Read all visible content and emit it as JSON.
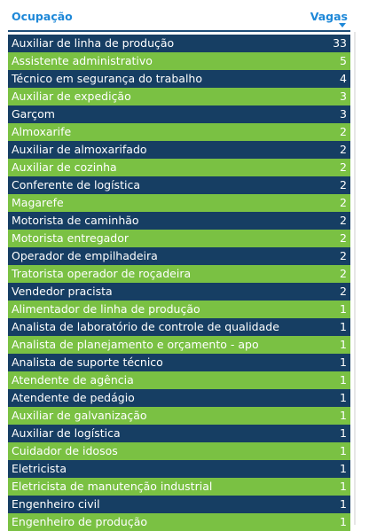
{
  "header": {
    "occupation_label": "Ocupação",
    "vacancies_label": "Vagas"
  },
  "rows": [
    {
      "occupation": "Auxiliar de linha de produção",
      "vacancies": "33"
    },
    {
      "occupation": "Assistente administrativo",
      "vacancies": "5"
    },
    {
      "occupation": "Técnico em segurança do trabalho",
      "vacancies": "4"
    },
    {
      "occupation": "Auxiliar de expedição",
      "vacancies": "3"
    },
    {
      "occupation": "Garçom",
      "vacancies": "3"
    },
    {
      "occupation": "Almoxarife",
      "vacancies": "2"
    },
    {
      "occupation": "Auxiliar de almoxarifado",
      "vacancies": "2"
    },
    {
      "occupation": "Auxiliar de cozinha",
      "vacancies": "2"
    },
    {
      "occupation": "Conferente de logística",
      "vacancies": "2"
    },
    {
      "occupation": "Magarefe",
      "vacancies": "2"
    },
    {
      "occupation": "Motorista de caminhão",
      "vacancies": "2"
    },
    {
      "occupation": "Motorista entregador",
      "vacancies": "2"
    },
    {
      "occupation": "Operador de empilhadeira",
      "vacancies": "2"
    },
    {
      "occupation": "Tratorista operador de roçadeira",
      "vacancies": "2"
    },
    {
      "occupation": "Vendedor pracista",
      "vacancies": "2"
    },
    {
      "occupation": "Alimentador de linha de produção",
      "vacancies": "1"
    },
    {
      "occupation": "Analista de laboratório de controle de qualidade",
      "vacancies": "1"
    },
    {
      "occupation": "Analista de planejamento e orçamento - apo",
      "vacancies": "1"
    },
    {
      "occupation": "Analista de suporte técnico",
      "vacancies": "1"
    },
    {
      "occupation": "Atendente de agência",
      "vacancies": "1"
    },
    {
      "occupation": "Atendente de pedágio",
      "vacancies": "1"
    },
    {
      "occupation": "Auxiliar de galvanização",
      "vacancies": "1"
    },
    {
      "occupation": "Auxiliar de logística",
      "vacancies": "1"
    },
    {
      "occupation": "Cuidador de idosos",
      "vacancies": "1"
    },
    {
      "occupation": "Eletricista",
      "vacancies": "1"
    },
    {
      "occupation": "Eletricista de manutenção industrial",
      "vacancies": "1"
    },
    {
      "occupation": "Engenheiro civil",
      "vacancies": "1"
    },
    {
      "occupation": "Engenheiro de produção",
      "vacancies": "1"
    }
  ],
  "colors": {
    "header_text": "#1e88d8",
    "row_dark": "#163e63",
    "row_light": "#7ac143",
    "row_text": "#ffffff"
  },
  "sort": {
    "column": "Vagas",
    "direction": "descending",
    "icon": "sort-descending-icon"
  }
}
